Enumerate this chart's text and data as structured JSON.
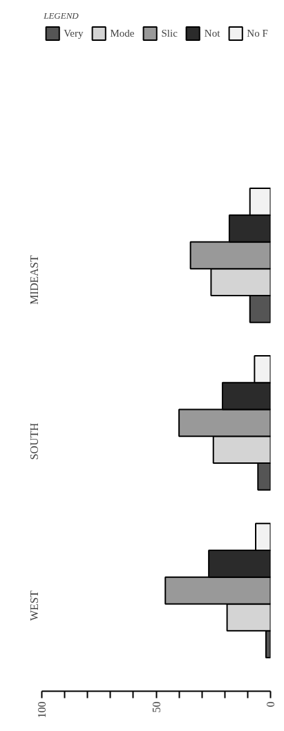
{
  "chart_data": {
    "type": "bar",
    "orientation": "horizontal",
    "legend_title": "LEGEND",
    "legend": "top",
    "categories": [
      "MIDEAST",
      "SOUTH",
      "WEST"
    ],
    "xlim": [
      100,
      0
    ],
    "xticks": [
      0,
      {
        "value": 10,
        "label": null
      },
      {
        "value": 20,
        "label": null
      },
      {
        "value": 30,
        "label": null
      },
      {
        "value": 40,
        "label": null
      },
      50,
      {
        "value": 60,
        "label": null
      },
      {
        "value": 70,
        "label": null
      },
      {
        "value": 80,
        "label": null
      },
      {
        "value": 90,
        "label": null
      },
      100
    ],
    "grid": false,
    "series": [
      {
        "name": "Very",
        "color": "#555555",
        "values": [
          9,
          5.5,
          2
        ]
      },
      {
        "name": "Mode",
        "color": "#d4d4d4",
        "values": [
          26,
          25,
          19
        ]
      },
      {
        "name": "Slic",
        "color": "#999999",
        "values": [
          35,
          40,
          46
        ]
      },
      {
        "name": "Not",
        "color": "#2b2b2b",
        "values": [
          18,
          21,
          27
        ]
      },
      {
        "name": "No F",
        "color": "#f2f2f2",
        "values": [
          9,
          7,
          6.5
        ]
      }
    ]
  }
}
